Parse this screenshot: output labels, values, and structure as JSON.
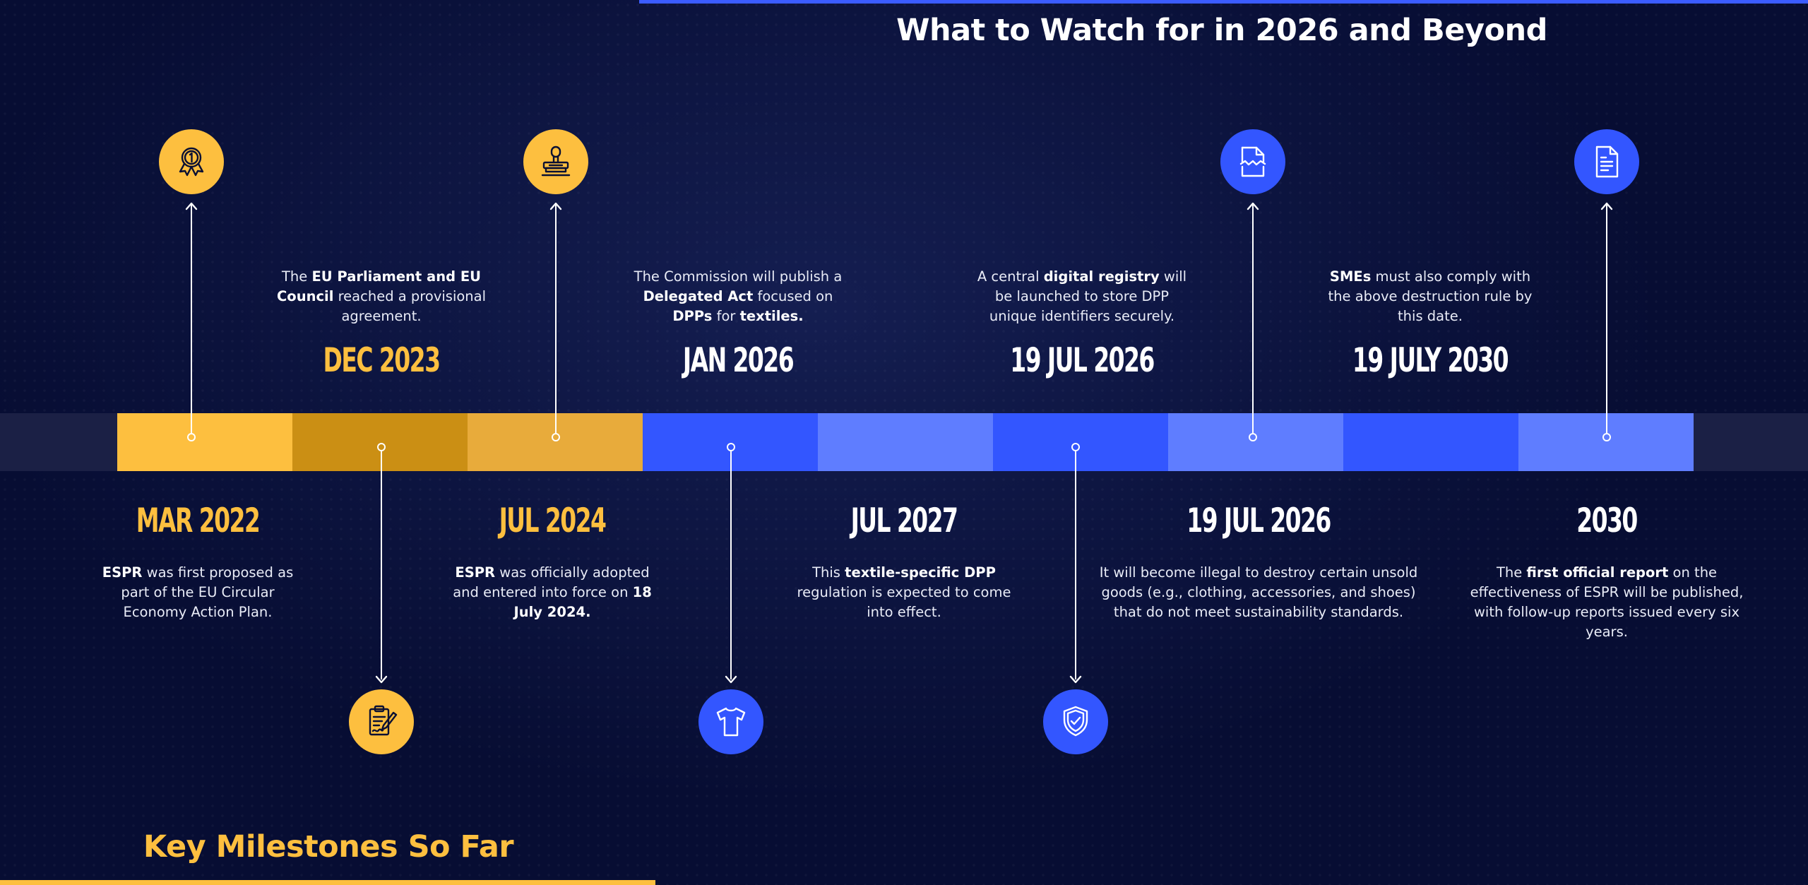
{
  "header_title": "What to Watch for in 2026 and Beyond",
  "footer_title": "Key Milestones So Far",
  "colors": {
    "background": "#070d33",
    "gold": "#fdbf3f",
    "gold_dark": "#cb8f14",
    "gold_mid": "#e8ab3b",
    "blue": "#3356ff",
    "blue_light": "#5f7dff",
    "track_end": "#1b2045"
  },
  "milestones": [
    {
      "date": "MAR 2022",
      "icon": "award-medal-icon",
      "parts": [
        [
          "ESPR",
          true
        ],
        [
          " was first proposed as part of the EU Circular Economy Action Plan.",
          false
        ]
      ]
    },
    {
      "date": "DEC 2023",
      "icon": "signed-document-icon",
      "parts": [
        [
          "The ",
          false
        ],
        [
          "EU Parliament and EU Council",
          true
        ],
        [
          " reached a provisional agreement.",
          false
        ]
      ]
    },
    {
      "date": "JUL 2024",
      "icon": "stamp-icon",
      "parts": [
        [
          "ESPR",
          true
        ],
        [
          " was officially adopted and entered into force on ",
          false
        ],
        [
          "18 July 2024.",
          true
        ]
      ]
    },
    {
      "date": "JAN 2026",
      "icon": "t-shirt-icon",
      "parts": [
        [
          "The Commission will publish a ",
          false
        ],
        [
          "Delegated Act",
          true
        ],
        [
          " focused on ",
          false
        ],
        [
          "DPPs",
          true
        ],
        [
          " for ",
          false
        ],
        [
          "textiles.",
          true
        ]
      ]
    },
    {
      "date": "JUL 2027",
      "icon": "",
      "parts": [
        [
          "This ",
          false
        ],
        [
          "textile-specific DPP",
          true
        ],
        [
          " regulation is expected to come into effect.",
          false
        ]
      ]
    },
    {
      "date": "19 JUL 2026",
      "icon": "shield-check-icon",
      "parts": [
        [
          "A central ",
          false
        ],
        [
          "digital registry",
          true
        ],
        [
          " will be launched to store DPP unique identifiers securely.",
          false
        ]
      ]
    },
    {
      "date": "19 JUL 2026",
      "icon": "torn-document-icon",
      "parts": [
        [
          "It will become illegal to destroy certain unsold goods (e.g., clothing, accessories, and shoes) that do not meet sustainability standards.",
          false
        ]
      ]
    },
    {
      "date": "19 JULY 2030",
      "icon": "",
      "parts": [
        [
          "SMEs",
          true
        ],
        [
          " must also comply with the above destruction rule by this date.",
          false
        ]
      ]
    },
    {
      "date": "2030",
      "icon": "document-icon",
      "parts": [
        [
          "The ",
          false
        ],
        [
          "first official report",
          true
        ],
        [
          " on the effectiveness of ESPR will be published, with follow-up reports issued every six years.",
          false
        ]
      ]
    }
  ]
}
